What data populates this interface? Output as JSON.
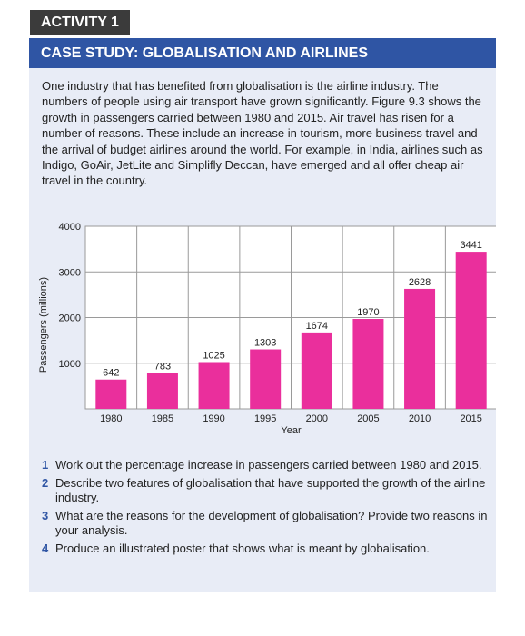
{
  "activity_label": "ACTIVITY 1",
  "title": "CASE STUDY: GLOBALISATION AND AIRLINES",
  "intro": "One industry that has benefited from globalisation is the airline industry. The numbers of people using air transport have grown significantly. Figure 9.3 shows the growth in passengers carried between 1980 and 2015. Air travel has risen for a number of reasons. These include an increase in tourism, more business travel and the arrival of budget airlines around the world. For example, in India, airlines such as Indigo, GoAir, JetLite and Simplifly Deccan, have emerged and all offer cheap air travel in the country.",
  "colors": {
    "bar": "#ea2f9c",
    "title_bar": "#2f55a4",
    "activity_tab": "#3b3b3b",
    "panel": "#e8ecf6",
    "question_number": "#2f55a4"
  },
  "chart_data": {
    "type": "bar",
    "categories": [
      "1980",
      "1985",
      "1990",
      "1995",
      "2000",
      "2005",
      "2010",
      "2015"
    ],
    "values": [
      642,
      783,
      1025,
      1303,
      1674,
      1970,
      2628,
      3441
    ],
    "title": "",
    "xlabel": "Year",
    "ylabel": "Passengers (millions)",
    "ylim": [
      0,
      4000
    ],
    "yticks": [
      1000,
      2000,
      3000,
      4000
    ],
    "grid": true,
    "data_labels": true
  },
  "questions": [
    {
      "number": "1",
      "text": "Work out the percentage increase in passengers carried between 1980 and 2015."
    },
    {
      "number": "2",
      "text": "Describe two features of globalisation that have supported the growth of the airline industry."
    },
    {
      "number": "3",
      "text": "What are the reasons for the development of globalisation? Provide two reasons in your analysis."
    },
    {
      "number": "4",
      "text": "Produce an illustrated poster that shows what is meant by globalisation."
    }
  ]
}
